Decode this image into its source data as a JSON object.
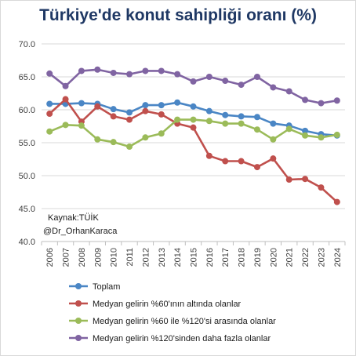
{
  "chart_data": {
    "type": "line",
    "title": "Türkiye'de konut sahipliği oranı (%)",
    "xlabel": "",
    "ylabel": "",
    "ylim": [
      40,
      70
    ],
    "y_ticks": [
      "40.0",
      "45.0",
      "50.0",
      "55.0",
      "60.0",
      "65.0",
      "70.0"
    ],
    "grid": "horizontal",
    "legend_position": "bottom",
    "categories": [
      "2006",
      "2007",
      "2008",
      "2009",
      "2010",
      "2011",
      "2012",
      "2013",
      "2014",
      "2015",
      "2016",
      "2017",
      "2018",
      "2019",
      "2020",
      "2021",
      "2022",
      "2023",
      "2024"
    ],
    "series": [
      {
        "name": "Toplam",
        "color": "#4a86c5",
        "values": [
          60.9,
          60.9,
          61.0,
          60.9,
          60.1,
          59.6,
          60.7,
          60.7,
          61.1,
          60.5,
          59.8,
          59.2,
          59.0,
          58.9,
          57.9,
          57.6,
          56.8,
          56.3,
          56.1
        ]
      },
      {
        "name": "Medyan gelirin %60'ının altında olanlar",
        "color": "#c0504d",
        "values": [
          59.4,
          61.6,
          58.2,
          60.5,
          59.0,
          58.5,
          59.8,
          59.3,
          57.9,
          57.3,
          53.0,
          52.2,
          52.2,
          51.3,
          52.6,
          49.4,
          49.5,
          48.2,
          46.0
        ]
      },
      {
        "name": "Medyan gelirin %60 ile %120'si arasında olanlar",
        "color": "#9bbb59",
        "values": [
          56.7,
          57.7,
          57.6,
          55.5,
          55.1,
          54.4,
          55.8,
          56.4,
          58.5,
          58.5,
          58.3,
          57.9,
          57.9,
          57.0,
          55.5,
          57.1,
          56.1,
          55.8,
          56.2
        ]
      },
      {
        "name": "Medyan gelirin  %120'sinden daha fazla olanlar",
        "color": "#8064a2",
        "values": [
          65.5,
          63.6,
          65.9,
          66.1,
          65.6,
          65.4,
          65.9,
          65.9,
          65.4,
          64.3,
          65.0,
          64.4,
          63.8,
          65.0,
          63.4,
          62.8,
          61.5,
          61.0,
          61.4
        ]
      }
    ],
    "annotations": [
      "Kaynak:TÜİK",
      "@Dr_OrhanKaraca"
    ]
  }
}
